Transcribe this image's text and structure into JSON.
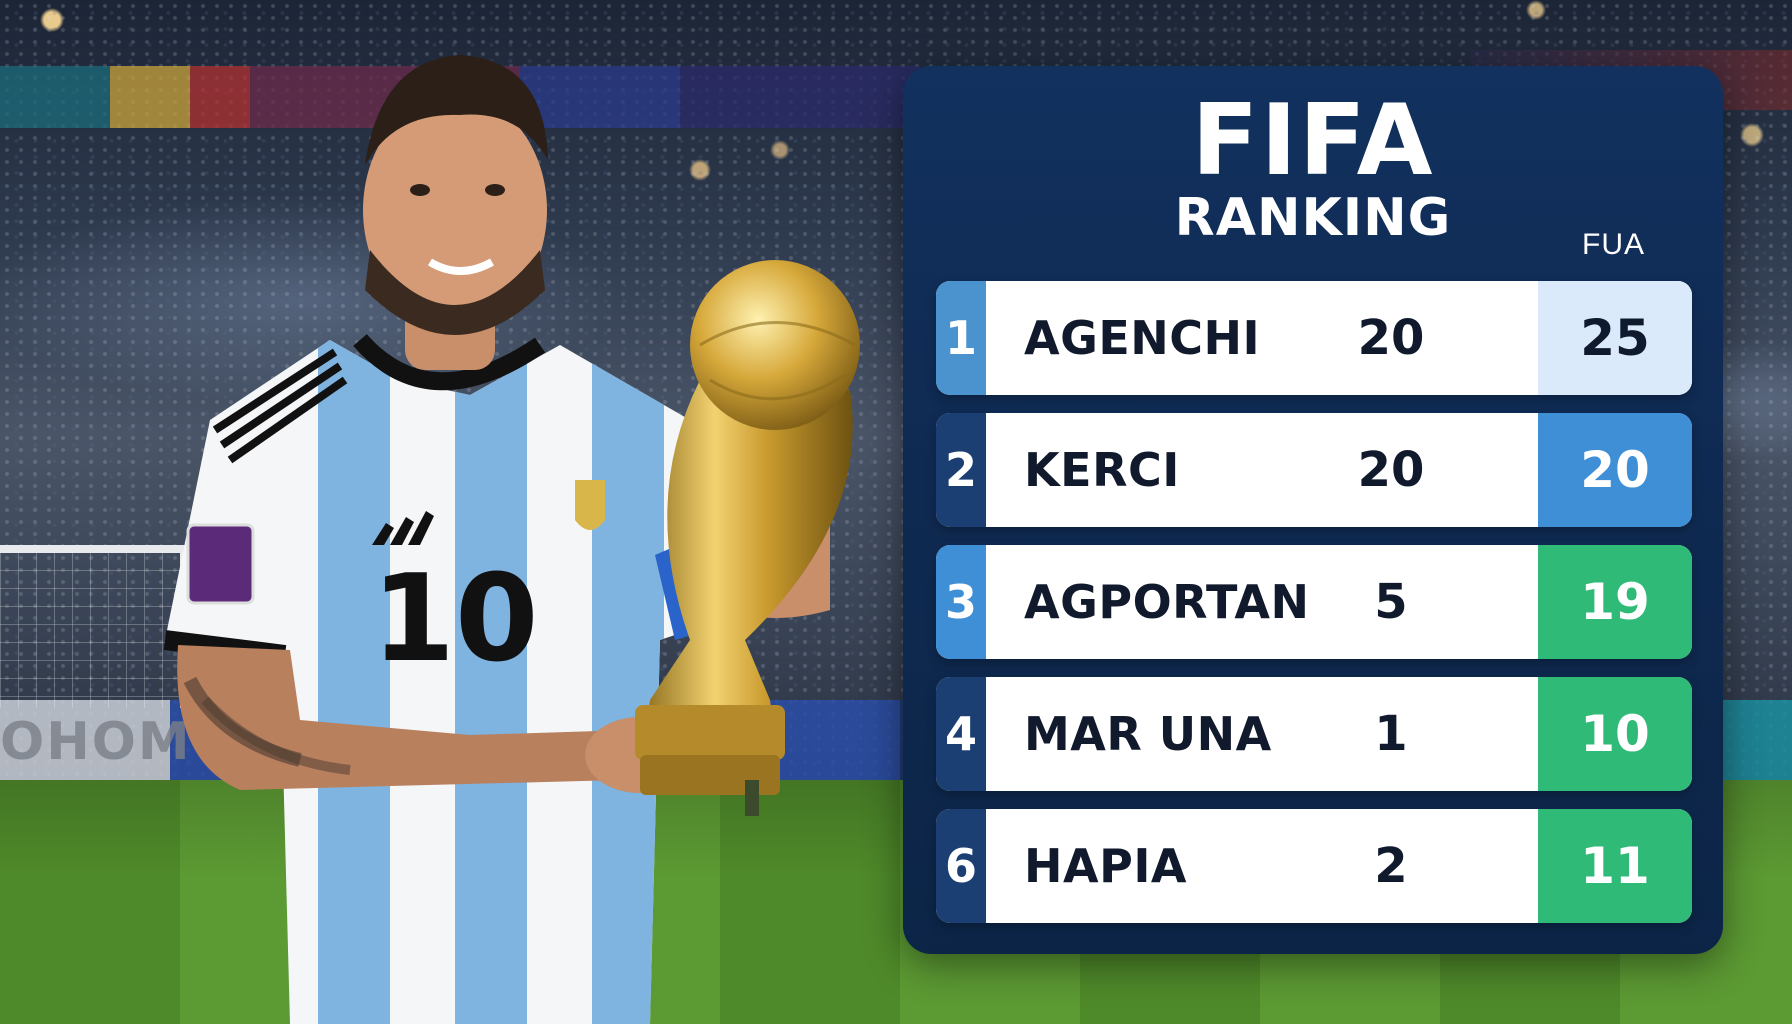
{
  "background": {
    "ad_board_text": "OHOMOH"
  },
  "player": {
    "shirt_number": "10"
  },
  "ranking": {
    "title": "FIFA",
    "subtitle": "RANKING",
    "tag": "FUA",
    "rows": [
      {
        "rank": "1",
        "name": "AGENCHI",
        "mid_value": "20",
        "points": "25",
        "rank_color": "#4b93cf",
        "points_color": "#dbeafb",
        "points_text_color": "#0f1a2e"
      },
      {
        "rank": "2",
        "name": "KERCI",
        "mid_value": "20",
        "points": "20",
        "rank_color": "#1b3f72",
        "points_color": "#3f8fd6",
        "points_text_color": "#ffffff"
      },
      {
        "rank": "3",
        "name": "AGPORTAN",
        "mid_value": "5",
        "points": "19",
        "rank_color": "#3f8fd6",
        "points_color": "#2fba78",
        "points_text_color": "#ffffff"
      },
      {
        "rank": "4",
        "name": "MAR UNA",
        "mid_value": "1",
        "points": "10",
        "rank_color": "#1b3f72",
        "points_color": "#2fba78",
        "points_text_color": "#ffffff"
      },
      {
        "rank": "6",
        "name": "HAPIA",
        "mid_value": "2",
        "points": "11",
        "rank_color": "#1b3f72",
        "points_color": "#2fba78",
        "points_text_color": "#ffffff"
      }
    ]
  }
}
